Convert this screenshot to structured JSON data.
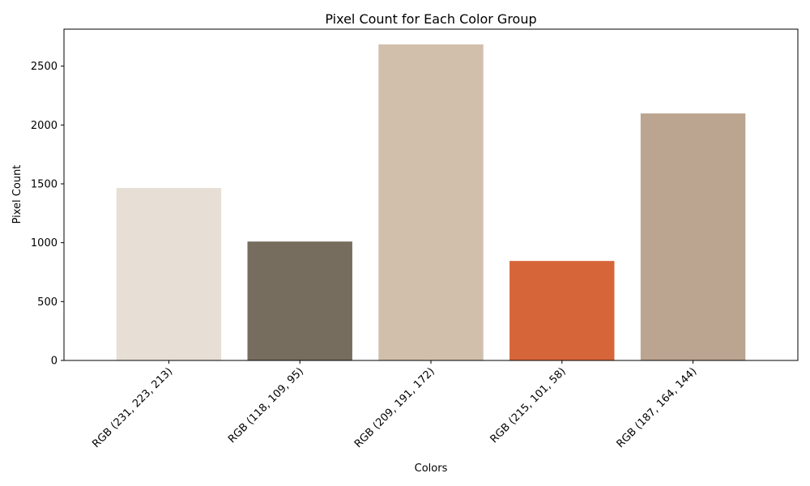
{
  "chart_data": {
    "type": "bar",
    "title": "Pixel Count for Each Color Group",
    "xlabel": "Colors",
    "ylabel": "Pixel Count",
    "categories": [
      "RGB (231, 223, 213)",
      "RGB (118, 109, 95)",
      "RGB (209, 191, 172)",
      "RGB (215, 101, 58)",
      "RGB (187, 164, 144)"
    ],
    "values": [
      1465,
      1010,
      2685,
      845,
      2098
    ],
    "colors": [
      "#e7dfd5",
      "#766d5f",
      "#d1bfac",
      "#d7653a",
      "#bba490"
    ],
    "ylim": [
      0,
      2814
    ],
    "yticks": [
      0,
      500,
      1000,
      1500,
      2000,
      2500
    ],
    "grid": false
  }
}
